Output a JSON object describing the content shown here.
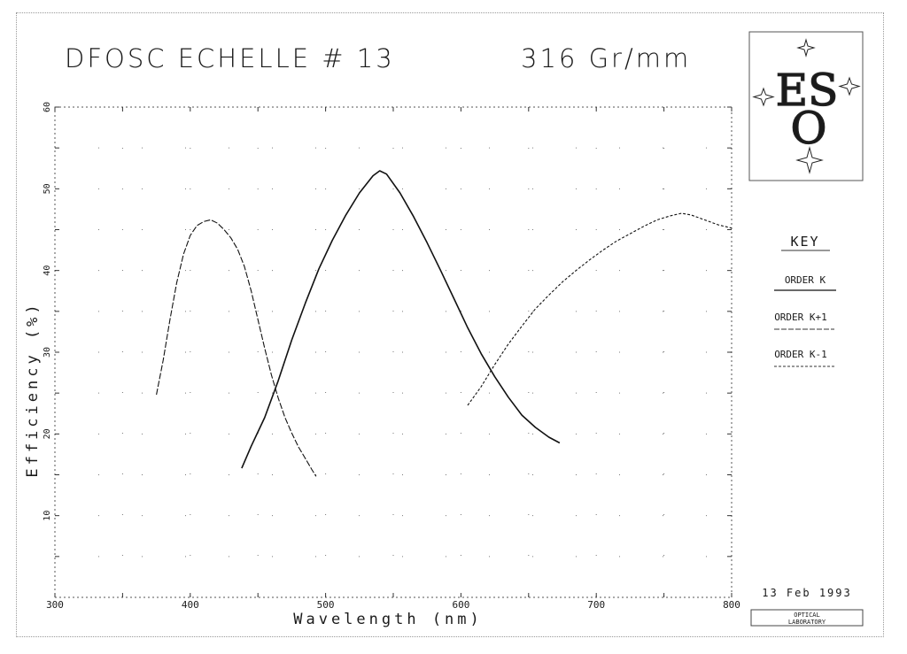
{
  "chart_data": {
    "type": "line",
    "title": "DFOSC ECHELLE # 13",
    "subtitle": "316 Gr/mm",
    "xlabel": "Wavelength (nm)",
    "ylabel": "Efficiency (%)",
    "xlim": [
      300,
      800
    ],
    "ylim": [
      0,
      60
    ],
    "x_ticks": [
      "300",
      "400",
      "500",
      "600",
      "700",
      "800"
    ],
    "y_ticks": [
      "10",
      "20",
      "30",
      "40",
      "50",
      "60"
    ],
    "grid": true,
    "legend_title": "KEY",
    "legend_position": "right",
    "series": [
      {
        "name": "ORDER K",
        "style": "solid",
        "points": [
          [
            438,
            15.8
          ],
          [
            445,
            18.5
          ],
          [
            455,
            22
          ],
          [
            465,
            26.5
          ],
          [
            475,
            31.5
          ],
          [
            485,
            36
          ],
          [
            495,
            40.2
          ],
          [
            505,
            43.7
          ],
          [
            515,
            46.8
          ],
          [
            525,
            49.5
          ],
          [
            535,
            51.6
          ],
          [
            540,
            52.2
          ],
          [
            545,
            51.8
          ],
          [
            555,
            49.5
          ],
          [
            565,
            46.6
          ],
          [
            575,
            43.4
          ],
          [
            585,
            40
          ],
          [
            595,
            36.5
          ],
          [
            605,
            33
          ],
          [
            615,
            29.8
          ],
          [
            625,
            27
          ],
          [
            635,
            24.5
          ],
          [
            645,
            22.3
          ],
          [
            655,
            20.8
          ],
          [
            665,
            19.6
          ],
          [
            673,
            18.9
          ]
        ]
      },
      {
        "name": "ORDER K+1",
        "style": "dashed",
        "points": [
          [
            375,
            24.8
          ],
          [
            380,
            29
          ],
          [
            385,
            34
          ],
          [
            390,
            38.5
          ],
          [
            395,
            42
          ],
          [
            400,
            44.3
          ],
          [
            405,
            45.5
          ],
          [
            410,
            46
          ],
          [
            415,
            46.2
          ],
          [
            420,
            45.8
          ],
          [
            425,
            45
          ],
          [
            430,
            44
          ],
          [
            435,
            42.6
          ],
          [
            440,
            40.5
          ],
          [
            445,
            37.5
          ],
          [
            450,
            34
          ],
          [
            455,
            30.5
          ],
          [
            460,
            27.2
          ],
          [
            465,
            24.4
          ],
          [
            470,
            22
          ],
          [
            475,
            20.1
          ],
          [
            480,
            18.4
          ],
          [
            485,
            17
          ],
          [
            490,
            15.6
          ],
          [
            493,
            14.8
          ]
        ]
      },
      {
        "name": "ORDER K-1",
        "style": "dotted",
        "points": [
          [
            605,
            23.5
          ],
          [
            615,
            25.8
          ],
          [
            625,
            28.5
          ],
          [
            635,
            31
          ],
          [
            645,
            33.2
          ],
          [
            655,
            35.3
          ],
          [
            665,
            37
          ],
          [
            675,
            38.6
          ],
          [
            685,
            40
          ],
          [
            695,
            41.3
          ],
          [
            705,
            42.5
          ],
          [
            715,
            43.6
          ],
          [
            725,
            44.5
          ],
          [
            735,
            45.4
          ],
          [
            745,
            46.2
          ],
          [
            755,
            46.7
          ],
          [
            763,
            47
          ],
          [
            770,
            46.8
          ],
          [
            780,
            46.2
          ],
          [
            790,
            45.6
          ],
          [
            800,
            45.2
          ]
        ]
      }
    ]
  },
  "logo": {
    "text_top": "ES",
    "text_bottom": "O"
  },
  "footer": {
    "date": "13 Feb 1993",
    "lab_line1": "OPTICAL",
    "lab_line2": "LABORATORY"
  }
}
